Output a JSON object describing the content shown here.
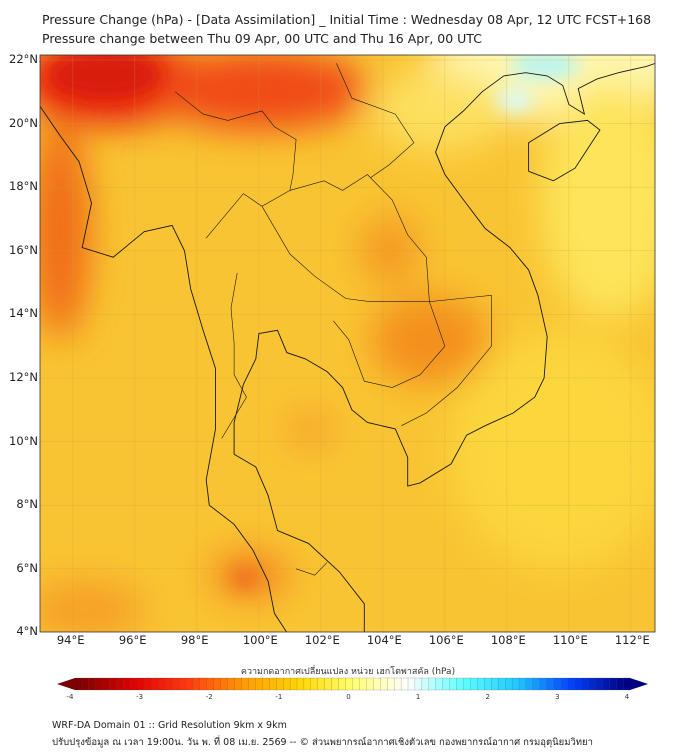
{
  "header": {
    "title": "Pressure Change (hPa) - [Data Assimilation] _ Initial Time : Wednesday 08 Apr, 12 UTC FCST+168",
    "subtitle": "Pressure change between Thu 09 Apr, 00 UTC and Thu 16 Apr, 00 UTC"
  },
  "map": {
    "lat_labels": [
      "22°N",
      "20°N",
      "18°N",
      "16°N",
      "14°N",
      "12°N",
      "10°N",
      "8°N",
      "6°N",
      "4°N"
    ],
    "lon_labels": [
      "94°E",
      "96°E",
      "98°E",
      "100°E",
      "102°E",
      "104°E",
      "106°E",
      "108°E",
      "110°E",
      "112°E"
    ]
  },
  "colorbar": {
    "title": "ความกดอากาศเปลี่ยนแปลง หน่วย เฮกโตพาสคัล (hPa)",
    "ticks": [
      "-4",
      "-3",
      "-2",
      "-1",
      "0",
      "1",
      "2",
      "3",
      "4"
    ],
    "range": [
      -4,
      4
    ],
    "colors": [
      "#7a0000",
      "#e00000",
      "#ff3a10",
      "#ff9a00",
      "#ffd400",
      "#ffff70",
      "#ffffff",
      "#60ffff",
      "#20c8ff",
      "#0040ff",
      "#000080"
    ]
  },
  "footer": {
    "line1": "WRF-DA Domain 01 :: Grid Resolution 9km x 9km",
    "line2": "ปรับปรุงข้อมูล ณ เวลา 19:00น. วัน พ. ที่ 08 เม.ย. 2569 -- © ส่วนพยากรณ์อากาศเชิงตัวเลข กองพยากรณ์อากาศ กรมอุตุนิยมวิทยา"
  }
}
